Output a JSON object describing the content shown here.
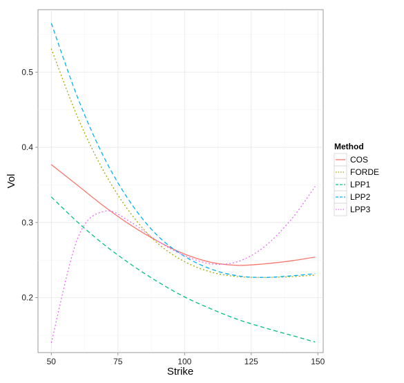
{
  "chart_data": {
    "type": "line",
    "xlabel": "Strike",
    "ylabel": "Vol",
    "xlim": [
      45,
      152
    ],
    "ylim": [
      0.127,
      0.583
    ],
    "xticks": [
      50,
      75,
      100,
      125,
      150
    ],
    "yticks": [
      0.2,
      0.3,
      0.4,
      0.5
    ],
    "xtick_labels": [
      "50",
      "75",
      "100",
      "125",
      "150"
    ],
    "ytick_labels": [
      "0.2",
      "0.3",
      "0.4",
      "0.5"
    ],
    "grid": true,
    "legend": {
      "title": "Method",
      "placement": "right"
    },
    "x": [
      50,
      60,
      70,
      80,
      90,
      100,
      110,
      120,
      130,
      140,
      149
    ],
    "series": [
      {
        "name": "COS",
        "color": "#F8766D",
        "dash": "solid",
        "values": [
          0.377,
          0.349,
          0.321,
          0.296,
          0.275,
          0.258,
          0.247,
          0.243,
          0.245,
          0.249,
          0.254
        ]
      },
      {
        "name": "FORDE",
        "color": "#A3A500",
        "dash": "dotted",
        "values": [
          0.531,
          0.439,
          0.366,
          0.311,
          0.272,
          0.248,
          0.234,
          0.228,
          0.227,
          0.228,
          0.23
        ]
      },
      {
        "name": "LPP1",
        "color": "#00BF7D",
        "dash": "dashed",
        "values": [
          0.334,
          0.3,
          0.27,
          0.244,
          0.221,
          0.201,
          0.185,
          0.171,
          0.16,
          0.15,
          0.141
        ]
      },
      {
        "name": "LPP2",
        "color": "#00B0F6",
        "dash": "dashed",
        "values": [
          0.565,
          0.465,
          0.385,
          0.325,
          0.282,
          0.255,
          0.238,
          0.229,
          0.227,
          0.229,
          0.232
        ]
      },
      {
        "name": "LPP3",
        "color": "#E76BF3",
        "dash": "dotted",
        "values": [
          0.14,
          0.28,
          0.315,
          0.3,
          0.275,
          0.256,
          0.245,
          0.248,
          0.268,
          0.304,
          0.348
        ]
      }
    ]
  }
}
